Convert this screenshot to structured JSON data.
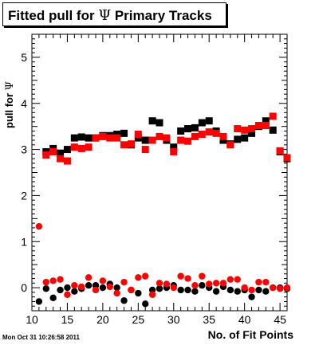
{
  "title": {
    "prefix": "Fitted pull for ",
    "symbol": "Ψ",
    "suffix": " Primary Tracks"
  },
  "timestamp": "Mon Oct 31 10:26:58 2011",
  "chart_data": {
    "type": "scatter",
    "title": "Fitted pull for Ψ Primary Tracks",
    "xlabel": "No. of Fit Points",
    "ylabel_prefix": "pull for ",
    "ylabel_symbol": "Ψ",
    "xlim": [
      10,
      46
    ],
    "ylim": [
      -0.5,
      5.5
    ],
    "x_ticks": [
      10,
      15,
      20,
      25,
      30,
      35,
      40,
      45
    ],
    "y_ticks": [
      0,
      1,
      2,
      3,
      4,
      5
    ],
    "x_tick_labels": [
      "10",
      "15",
      "20",
      "25",
      "30",
      "35",
      "40",
      "45"
    ],
    "y_tick_labels": [
      "0",
      "1",
      "2",
      "3",
      "4",
      "5"
    ],
    "grid": false,
    "legend": "none",
    "series": [
      {
        "marker": "square",
        "color": "#000000",
        "x": [
          12,
          13,
          14,
          15,
          16,
          17,
          18,
          19,
          20,
          21,
          22,
          23,
          24,
          25,
          26,
          27,
          28,
          29,
          30,
          31,
          32,
          33,
          34,
          35,
          36,
          37,
          38,
          39,
          40,
          41,
          42,
          43,
          44,
          45,
          46
        ],
        "y": [
          2.95,
          3.02,
          2.92,
          3.0,
          3.25,
          3.27,
          3.25,
          3.25,
          3.3,
          3.3,
          3.33,
          3.35,
          3.1,
          3.25,
          3.2,
          3.62,
          3.58,
          3.2,
          3.05,
          3.4,
          3.45,
          3.47,
          3.58,
          3.62,
          3.4,
          3.2,
          3.12,
          3.22,
          3.25,
          3.35,
          3.5,
          3.62,
          3.42,
          2.95,
          2.8
        ]
      },
      {
        "marker": "square",
        "color": "#ff0000",
        "x": [
          12,
          13,
          14,
          15,
          16,
          17,
          18,
          19,
          20,
          21,
          22,
          23,
          24,
          25,
          26,
          27,
          28,
          29,
          30,
          31,
          32,
          33,
          34,
          35,
          36,
          37,
          38,
          39,
          40,
          41,
          42,
          43,
          44,
          45,
          46
        ],
        "y": [
          2.88,
          2.95,
          2.8,
          2.75,
          3.05,
          3.02,
          3.05,
          3.25,
          3.28,
          3.25,
          3.25,
          3.1,
          3.12,
          3.33,
          3.0,
          3.2,
          3.28,
          3.25,
          2.95,
          3.2,
          3.18,
          3.28,
          3.33,
          3.38,
          3.35,
          3.28,
          3.1,
          3.45,
          3.42,
          3.45,
          3.52,
          3.52,
          3.72,
          2.97,
          2.82
        ]
      },
      {
        "marker": "circle",
        "color": "#000000",
        "x": [
          11,
          12,
          13,
          14,
          15,
          16,
          17,
          18,
          19,
          20,
          21,
          22,
          23,
          24,
          25,
          26,
          27,
          28,
          29,
          30,
          31,
          32,
          33,
          34,
          35,
          36,
          37,
          38,
          39,
          40,
          41,
          42,
          43,
          44,
          45,
          46
        ],
        "y": [
          -0.3,
          -0.02,
          -0.22,
          -0.05,
          0.0,
          -0.08,
          -0.02,
          0.05,
          0.05,
          0.0,
          0.08,
          0.0,
          -0.28,
          -0.05,
          -0.12,
          -0.35,
          -0.05,
          -0.02,
          0.0,
          0.05,
          -0.05,
          -0.05,
          -0.08,
          0.05,
          0.0,
          -0.08,
          0.02,
          -0.05,
          -0.08,
          -0.05,
          -0.2,
          -0.05,
          -0.08,
          0.0,
          0.0,
          -0.02
        ]
      },
      {
        "marker": "circle",
        "color": "#ff0000",
        "x": [
          11,
          12,
          13,
          14,
          15,
          16,
          17,
          18,
          19,
          20,
          21,
          22,
          23,
          24,
          25,
          26,
          27,
          28,
          29,
          30,
          31,
          32,
          33,
          34,
          35,
          36,
          37,
          38,
          39,
          40,
          41,
          42,
          43,
          44,
          45,
          46
        ],
        "y": [
          1.33,
          0.12,
          0.15,
          0.18,
          -0.15,
          0.05,
          0.02,
          0.22,
          -0.05,
          0.15,
          0.02,
          -0.12,
          0.12,
          -0.05,
          0.22,
          0.25,
          -0.15,
          0.1,
          0.08,
          0.0,
          0.25,
          0.2,
          0.05,
          0.25,
          0.08,
          0.1,
          0.1,
          0.18,
          0.18,
          0.0,
          -0.05,
          0.12,
          0.12,
          0.0,
          -0.02,
          0.0
        ]
      }
    ]
  }
}
